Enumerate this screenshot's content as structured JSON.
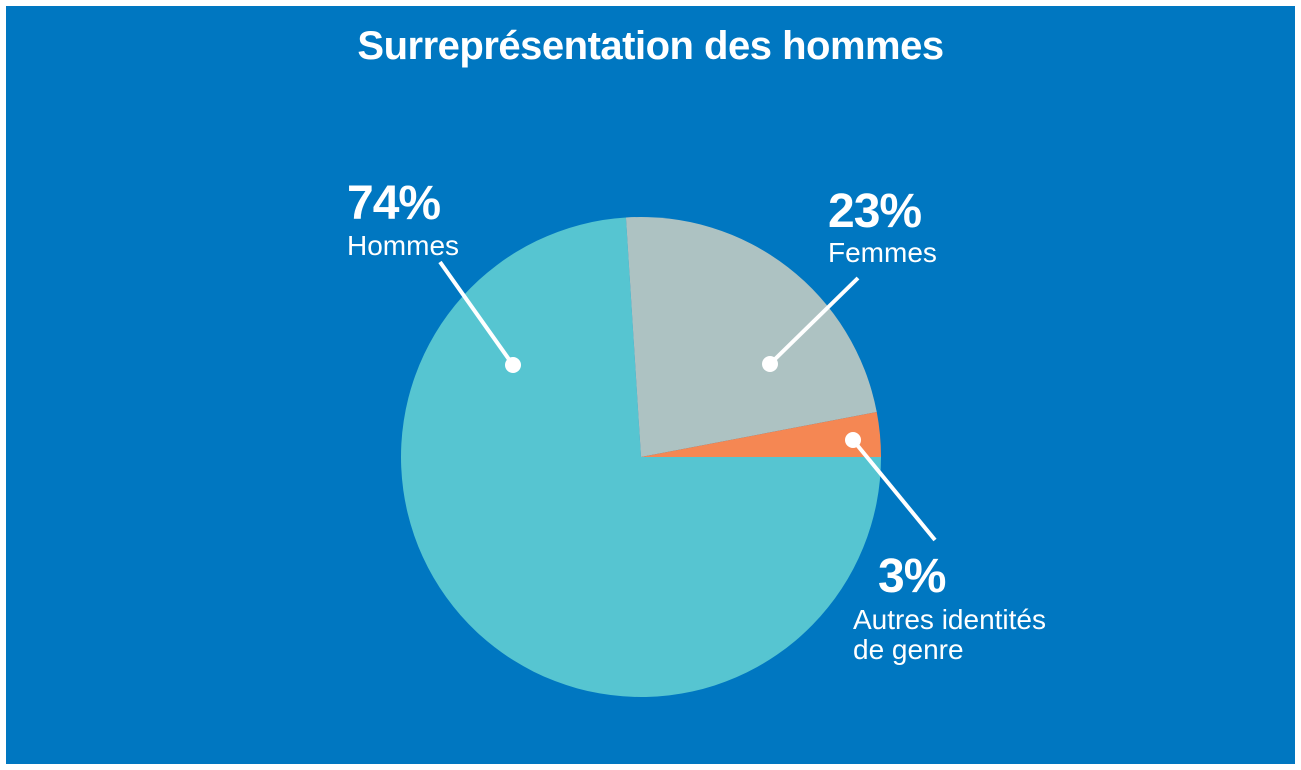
{
  "chart_data": {
    "type": "pie",
    "title": "Surreprésentation des hommes",
    "categories": [
      "Hommes",
      "Femmes",
      "Autres identités de genre"
    ],
    "values": [
      74,
      23,
      3
    ],
    "value_labels": [
      "74%",
      "23%",
      "3%"
    ],
    "colors": [
      "#56c5d1",
      "#adc2c2",
      "#f58753"
    ],
    "background": "#0077c1"
  }
}
